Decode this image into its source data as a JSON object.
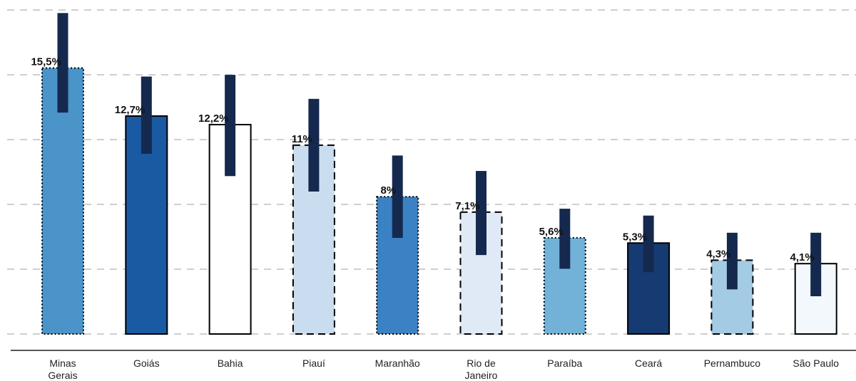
{
  "chart_data": {
    "type": "bar",
    "title": "",
    "xlabel": "",
    "ylabel": "",
    "grid": true,
    "ylim": [
      0,
      19.2
    ],
    "categories": [
      "Minas Gerais",
      "Goiás",
      "Bahia",
      "Piauí",
      "Maranhão",
      "Rio de Janeiro",
      "Paraíba",
      "Ceará",
      "Pernambuco",
      "São Paulo"
    ],
    "value_labels": [
      "15,5%",
      "12,7%",
      "12,2%",
      "11%",
      "8%",
      "7,1%",
      "5,6%",
      "5,3%",
      "4,3%",
      "4,1%"
    ],
    "values": [
      15.5,
      12.7,
      12.2,
      11.0,
      8.0,
      7.1,
      5.6,
      5.3,
      4.3,
      4.1
    ],
    "error_low": [
      12.9,
      10.5,
      9.2,
      8.3,
      5.6,
      4.6,
      3.8,
      3.6,
      2.6,
      2.2
    ],
    "error_high": [
      18.7,
      15.0,
      15.1,
      13.7,
      10.4,
      9.5,
      7.3,
      6.9,
      5.9,
      5.9
    ],
    "bar_fills": [
      "#4a94c9",
      "#1a5aa3",
      "#ffffff",
      "#cadcef",
      "#3a82c4",
      "#dfeaf6",
      "#72b2d9",
      "#163a72",
      "#a3cbe3",
      "#f3f8fd"
    ],
    "bar_border_styles": [
      "dotted",
      "solid",
      "solid",
      "dashed",
      "dotted",
      "dashed",
      "dotted",
      "solid",
      "dashed",
      "solid"
    ],
    "error_bar_color": "#15294f",
    "grid_color": "#cfcfcf",
    "axis_color": "#555555"
  }
}
